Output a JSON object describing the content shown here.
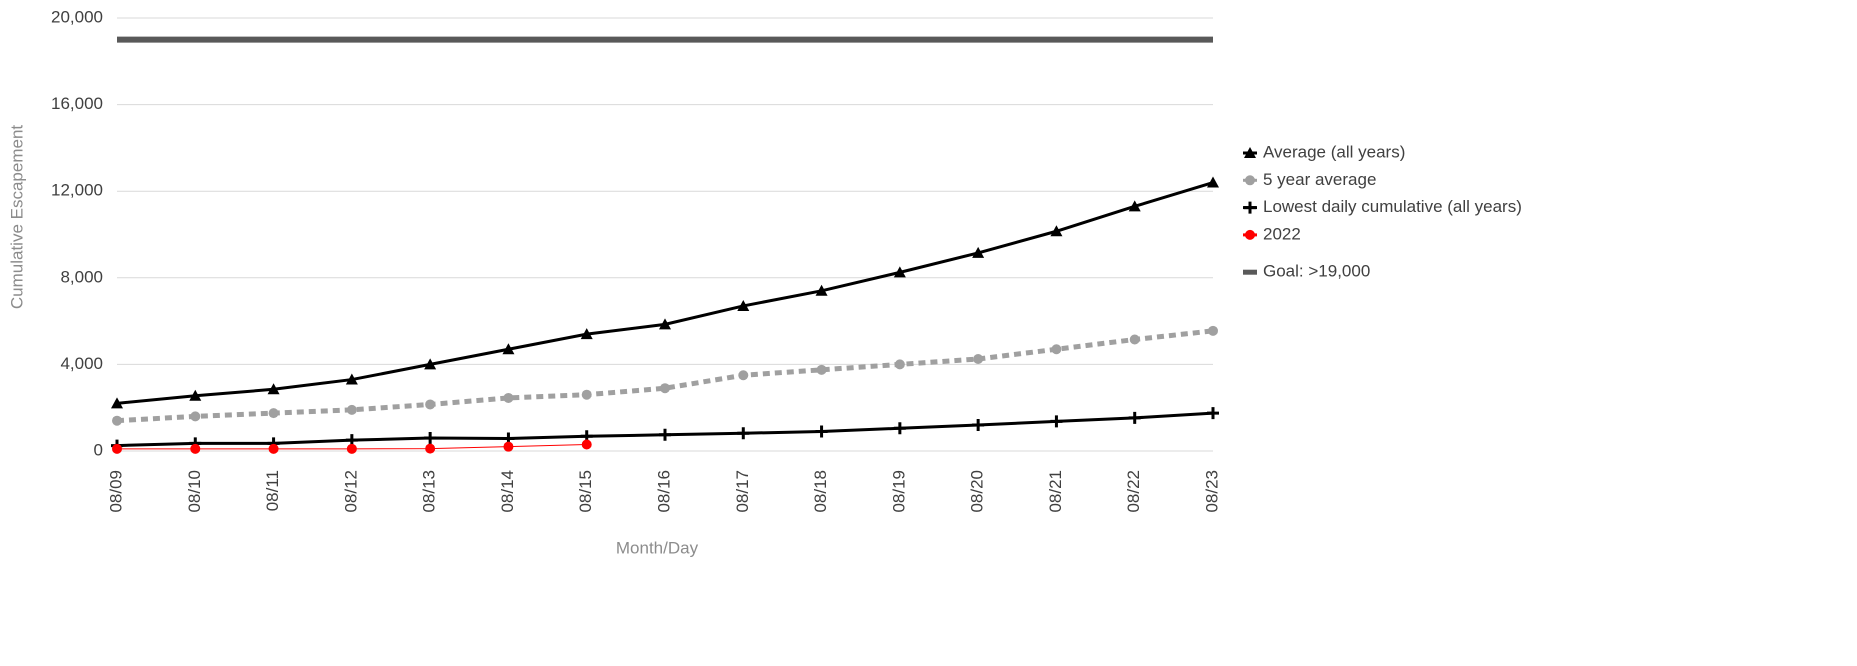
{
  "chart_data": {
    "type": "line",
    "y_label": "Cumulative Escapement",
    "x_label": "Month/Day",
    "categories": [
      "08/09",
      "08/10",
      "08/11",
      "08/12",
      "08/13",
      "08/14",
      "08/15",
      "08/16",
      "08/17",
      "08/18",
      "08/19",
      "08/20",
      "08/21",
      "08/22",
      "08/23"
    ],
    "ylim": [
      0,
      20000
    ],
    "yticks": [
      0,
      {
        "value": 4000,
        "label": "4,000"
      },
      {
        "value": 8000,
        "label": "8,000"
      },
      {
        "value": 12000,
        "label": "12,000"
      },
      {
        "value": 16000,
        "label": "16,000"
      },
      {
        "value": 20000,
        "label": "20,000"
      }
    ],
    "grid": true,
    "legend": "right",
    "series": [
      {
        "name": "Average (all years)",
        "color": "#000000",
        "marker": "triangle",
        "dash": false,
        "values": [
          2200,
          2550,
          2850,
          3300,
          4000,
          4700,
          5400,
          5850,
          6700,
          7400,
          8250,
          9150,
          10150,
          11300,
          12400
        ]
      },
      {
        "name": "5 year average",
        "color": "#a0a0a0",
        "marker": "circle",
        "dash": true,
        "values": [
          1400,
          1600,
          1750,
          1900,
          2150,
          2450,
          2600,
          2900,
          3500,
          3750,
          4000,
          4250,
          4700,
          5150,
          5550
        ]
      },
      {
        "name": "Lowest daily cumulative (all years)",
        "color": "#000000",
        "marker": "plus",
        "dash": false,
        "values": [
          250,
          350,
          350,
          500,
          600,
          580,
          680,
          750,
          820,
          900,
          1050,
          1200,
          1370,
          1530,
          1750
        ]
      },
      {
        "name": "2022",
        "color": "#ff0000",
        "marker": "circle",
        "dash": false,
        "thin": true,
        "values": [
          100,
          100,
          100,
          100,
          110,
          200,
          300,
          null,
          null,
          null,
          null,
          null,
          null,
          null,
          null
        ]
      },
      {
        "name": "Goal: >19,000",
        "color": "#595959",
        "marker": "none",
        "dash": false,
        "thick": true,
        "values": [
          19000,
          19000,
          19000,
          19000,
          19000,
          19000,
          19000,
          19000,
          19000,
          19000,
          19000,
          19000,
          19000,
          19000,
          19000
        ]
      }
    ]
  }
}
